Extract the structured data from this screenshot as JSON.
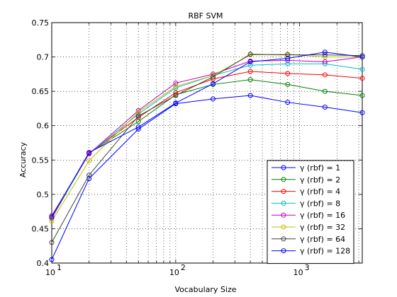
{
  "chart_data": {
    "type": "line",
    "title": "RBF SVM",
    "xlabel": "Vocabulary Size",
    "ylabel": "Accuracy",
    "x_scale": "log",
    "xlim": [
      10,
      3200
    ],
    "ylim": [
      0.4,
      0.75
    ],
    "grid": true,
    "legend_position": "bottom-right",
    "x": [
      10,
      20,
      50,
      100,
      200,
      400,
      800,
      1600,
      3200
    ],
    "x_ticks": [
      {
        "value": 10,
        "base": "10",
        "exp": "1"
      },
      {
        "value": 100,
        "base": "10",
        "exp": "2"
      },
      {
        "value": 1000,
        "base": "10",
        "exp": "3"
      }
    ],
    "y_ticks": [
      "0.4",
      "0.45",
      "0.5",
      "0.55",
      "0.6",
      "0.65",
      "0.7",
      "0.75"
    ],
    "series": [
      {
        "name": "γ (rbf) = 1",
        "color": "#0000ff",
        "values": [
          0.405,
          0.523,
          0.595,
          0.632,
          0.639,
          0.644,
          0.634,
          0.627,
          0.619
        ]
      },
      {
        "name": "γ (rbf) = 2",
        "color": "#008000",
        "values": [
          0.467,
          0.56,
          0.606,
          0.645,
          0.66,
          0.667,
          0.66,
          0.65,
          0.644
        ]
      },
      {
        "name": "γ (rbf) = 4",
        "color": "#ff0000",
        "values": [
          0.465,
          0.56,
          0.612,
          0.648,
          0.668,
          0.679,
          0.676,
          0.674,
          0.669
        ]
      },
      {
        "name": "γ (rbf) = 8",
        "color": "#00bfbf",
        "values": [
          0.466,
          0.559,
          0.617,
          0.655,
          0.673,
          0.688,
          0.69,
          0.69,
          0.682
        ]
      },
      {
        "name": "γ (rbf) = 16",
        "color": "#bf00bf",
        "values": [
          0.469,
          0.559,
          0.622,
          0.662,
          0.675,
          0.694,
          0.695,
          0.693,
          0.7
        ]
      },
      {
        "name": "γ (rbf) = 32",
        "color": "#bfbf00",
        "values": [
          0.461,
          0.549,
          0.62,
          0.657,
          0.673,
          0.703,
          0.704,
          0.7,
          0.7
        ]
      },
      {
        "name": "γ (rbf) = 64",
        "color": "#404040",
        "values": [
          0.43,
          0.528,
          0.614,
          0.644,
          0.671,
          0.704,
          0.703,
          0.703,
          0.702
        ]
      },
      {
        "name": "γ (rbf) = 128",
        "color": "#0000ff",
        "values": [
          0.467,
          0.561,
          0.598,
          0.633,
          0.661,
          0.693,
          0.698,
          0.707,
          0.7
        ]
      }
    ]
  }
}
